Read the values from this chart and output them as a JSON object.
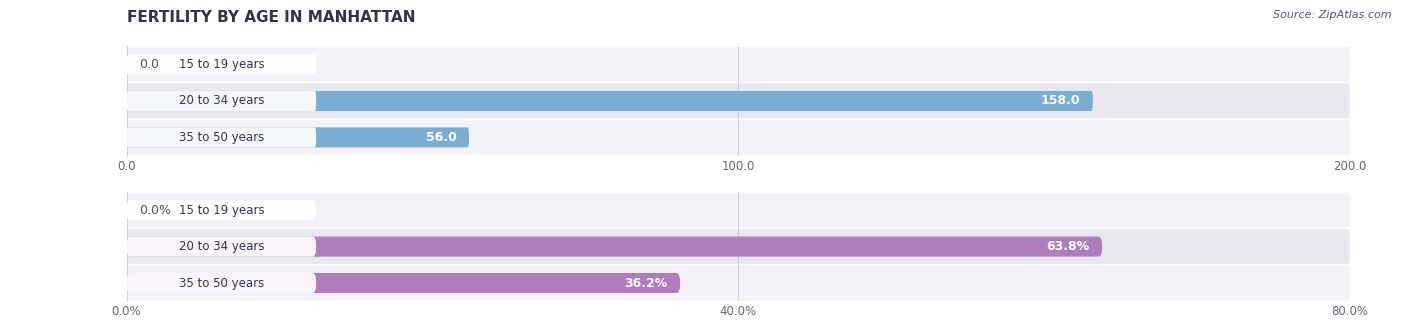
{
  "title": "FERTILITY BY AGE IN MANHATTAN",
  "source": "Source: ZipAtlas.com",
  "top_chart": {
    "categories": [
      "15 to 19 years",
      "20 to 34 years",
      "35 to 50 years"
    ],
    "values": [
      0.0,
      158.0,
      56.0
    ],
    "bar_color": "#7aadd4",
    "xlim": [
      0,
      200.0
    ],
    "xticks": [
      0.0,
      100.0,
      200.0
    ],
    "xtick_labels": [
      "0.0",
      "100.0",
      "200.0"
    ]
  },
  "bottom_chart": {
    "categories": [
      "15 to 19 years",
      "20 to 34 years",
      "35 to 50 years"
    ],
    "values": [
      0.0,
      63.8,
      36.2
    ],
    "bar_color": "#b07bbf",
    "xlim": [
      0,
      80.0
    ],
    "xticks": [
      0.0,
      40.0,
      80.0
    ],
    "xtick_labels": [
      "0.0%",
      "40.0%",
      "80.0%"
    ],
    "value_format": "%"
  },
  "bar_height": 0.55,
  "label_color_inside": "#ffffff",
  "label_color_outside": "#555555",
  "label_font_size": 9,
  "axis_font_size": 8.5,
  "title_font_size": 11,
  "title_color": "#333344",
  "source_color": "#555577",
  "category_label_color": "#333355",
  "bg_color": "#ffffff"
}
